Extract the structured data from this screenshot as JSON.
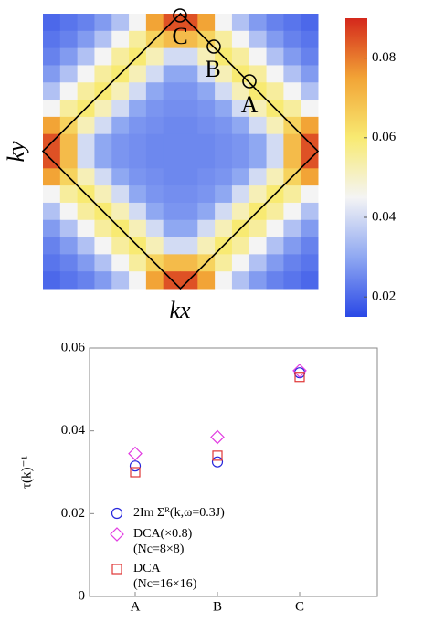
{
  "chart_data": [
    {
      "type": "heatmap",
      "xlabel": "kx",
      "ylabel": "ky",
      "annotations": [
        "C",
        "B",
        "A"
      ],
      "clim": [
        0.015,
        0.09
      ],
      "cticks": [
        0.02,
        0.04,
        0.06,
        0.08
      ],
      "colormap": [
        "#2a48e6",
        "#8fa8f2",
        "#f4f4f4",
        "#f8ea72",
        "#f2a436",
        "#d4281c"
      ],
      "values": [
        [
          0.02,
          0.022,
          0.024,
          0.028,
          0.035,
          0.045,
          0.075,
          0.085,
          0.085,
          0.075,
          0.045,
          0.035,
          0.028,
          0.024,
          0.022,
          0.02
        ],
        [
          0.022,
          0.024,
          0.028,
          0.035,
          0.045,
          0.055,
          0.065,
          0.07,
          0.07,
          0.065,
          0.055,
          0.045,
          0.035,
          0.028,
          0.024,
          0.022
        ],
        [
          0.024,
          0.028,
          0.035,
          0.045,
          0.055,
          0.06,
          0.052,
          0.04,
          0.04,
          0.052,
          0.06,
          0.055,
          0.045,
          0.035,
          0.028,
          0.024
        ],
        [
          0.028,
          0.035,
          0.045,
          0.055,
          0.06,
          0.052,
          0.04,
          0.03,
          0.03,
          0.04,
          0.052,
          0.06,
          0.055,
          0.045,
          0.035,
          0.028
        ],
        [
          0.035,
          0.045,
          0.055,
          0.06,
          0.052,
          0.04,
          0.03,
          0.027,
          0.027,
          0.03,
          0.04,
          0.052,
          0.06,
          0.055,
          0.045,
          0.035
        ],
        [
          0.045,
          0.055,
          0.06,
          0.052,
          0.04,
          0.03,
          0.027,
          0.026,
          0.026,
          0.027,
          0.03,
          0.04,
          0.052,
          0.06,
          0.055,
          0.045
        ],
        [
          0.075,
          0.065,
          0.052,
          0.04,
          0.03,
          0.027,
          0.026,
          0.025,
          0.025,
          0.026,
          0.027,
          0.03,
          0.04,
          0.052,
          0.065,
          0.075
        ],
        [
          0.085,
          0.07,
          0.04,
          0.03,
          0.027,
          0.026,
          0.025,
          0.025,
          0.025,
          0.025,
          0.026,
          0.027,
          0.03,
          0.04,
          0.07,
          0.085
        ],
        [
          0.085,
          0.07,
          0.04,
          0.03,
          0.027,
          0.026,
          0.025,
          0.025,
          0.025,
          0.025,
          0.026,
          0.027,
          0.03,
          0.04,
          0.07,
          0.085
        ],
        [
          0.075,
          0.065,
          0.052,
          0.04,
          0.03,
          0.027,
          0.026,
          0.025,
          0.025,
          0.026,
          0.027,
          0.03,
          0.04,
          0.052,
          0.065,
          0.075
        ],
        [
          0.045,
          0.055,
          0.06,
          0.052,
          0.04,
          0.03,
          0.027,
          0.026,
          0.026,
          0.027,
          0.03,
          0.04,
          0.052,
          0.06,
          0.055,
          0.045
        ],
        [
          0.035,
          0.045,
          0.055,
          0.06,
          0.052,
          0.04,
          0.03,
          0.027,
          0.027,
          0.03,
          0.04,
          0.052,
          0.06,
          0.055,
          0.045,
          0.035
        ],
        [
          0.028,
          0.035,
          0.045,
          0.055,
          0.06,
          0.052,
          0.04,
          0.03,
          0.03,
          0.04,
          0.052,
          0.06,
          0.055,
          0.045,
          0.035,
          0.028
        ],
        [
          0.024,
          0.028,
          0.035,
          0.045,
          0.055,
          0.06,
          0.052,
          0.04,
          0.04,
          0.052,
          0.06,
          0.055,
          0.045,
          0.035,
          0.028,
          0.024
        ],
        [
          0.022,
          0.024,
          0.028,
          0.035,
          0.045,
          0.055,
          0.065,
          0.07,
          0.07,
          0.065,
          0.055,
          0.045,
          0.035,
          0.028,
          0.024,
          0.022
        ],
        [
          0.02,
          0.022,
          0.024,
          0.028,
          0.035,
          0.045,
          0.075,
          0.085,
          0.085,
          0.075,
          0.045,
          0.035,
          0.028,
          0.024,
          0.022,
          0.02
        ]
      ]
    },
    {
      "type": "scatter",
      "ylabel": "τ(k)⁻¹",
      "categories": [
        "A",
        "B",
        "C"
      ],
      "ylim": [
        0,
        0.06
      ],
      "yticks": [
        0,
        0.02,
        0.04,
        0.06
      ],
      "series": [
        {
          "name": [
            "2Im Σᴿ(k,ω=0.3J)"
          ],
          "color": "#2626dc",
          "marker": "circle",
          "values": [
            0.0315,
            0.0325,
            0.054
          ]
        },
        {
          "name": [
            "DCA(×0.8)",
            "(Nc=8×8)"
          ],
          "color": "#e23ce2",
          "marker": "diamond",
          "values": [
            0.0345,
            0.0385,
            0.0545
          ]
        },
        {
          "name": [
            "DCA",
            "(Nc=16×16)"
          ],
          "color": "#e03636",
          "marker": "square",
          "values": [
            0.03,
            0.034,
            0.053
          ]
        }
      ]
    }
  ]
}
